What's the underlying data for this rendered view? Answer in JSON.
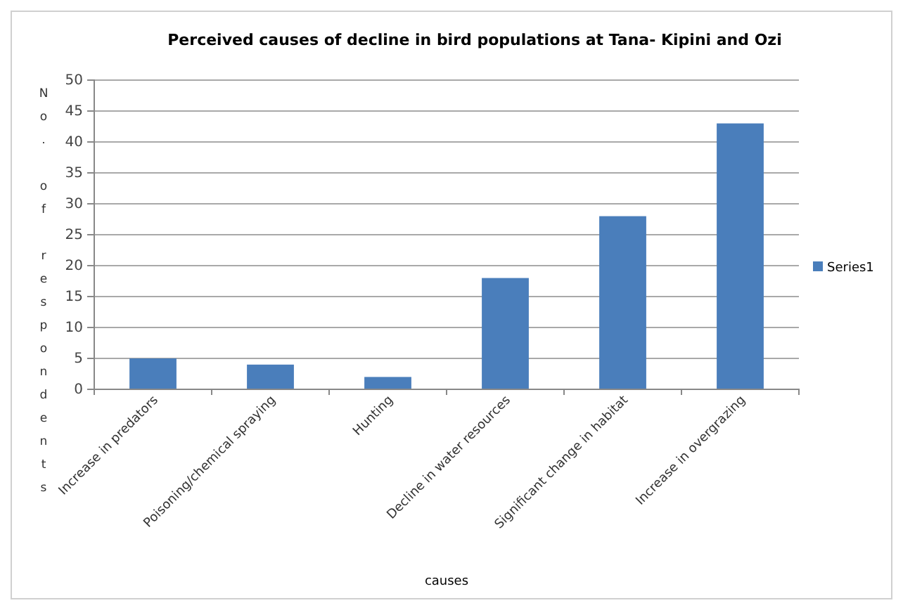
{
  "chart_data": {
    "type": "bar",
    "title": "Perceived causes of decline in bird populations at Tana- Kipini and Ozi",
    "xlabel": "causes",
    "ylabel": "No. of respondents",
    "categories": [
      "Increase in predators",
      "Poisoning/chemical spraying",
      "Hunting",
      "Decline in water resources",
      "Significant change in habitat",
      "Increase in overgrazing"
    ],
    "series": [
      {
        "name": "Series1",
        "color": "#4a7ebb",
        "values": [
          5,
          4,
          2,
          18,
          28,
          43
        ]
      }
    ],
    "ylim": [
      0,
      50
    ],
    "yticks": [
      0,
      5,
      10,
      15,
      20,
      25,
      30,
      35,
      40,
      45,
      50
    ],
    "grid": "y",
    "legend": "right"
  }
}
